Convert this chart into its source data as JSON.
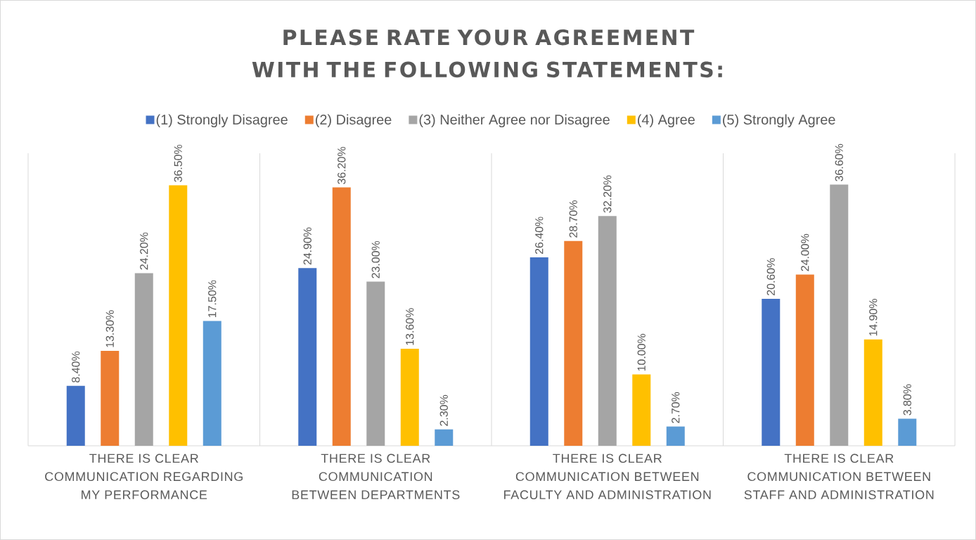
{
  "chart_data": {
    "type": "bar",
    "title": "PLEASE RATE YOUR AGREEMENT WITH THE FOLLOWING STATEMENTS:",
    "categories": [
      "THERE IS CLEAR COMMUNICATION REGARDING MY PERFORMANCE",
      "THERE IS CLEAR COMMUNICATION BETWEEN DEPARTMENTS",
      "THERE IS CLEAR COMMUNICATION BETWEEN FACULTY AND ADMINISTRATION",
      "THERE IS CLEAR COMMUNICATION BETWEEN STAFF AND ADMINISTRATION"
    ],
    "series": [
      {
        "name": "(1) Strongly Disagree",
        "color": "#4472c4",
        "values": [
          8.4,
          24.9,
          26.4,
          20.6
        ],
        "value_labels": [
          "8.40%",
          "24.90%",
          "26.40%",
          "20.60%"
        ]
      },
      {
        "name": "(2) Disagree",
        "color": "#ed7d31",
        "values": [
          13.3,
          36.2,
          28.7,
          24.0
        ],
        "value_labels": [
          "13.30%",
          "36.20%",
          "28.70%",
          "24.00%"
        ]
      },
      {
        "name": "(3) Neither Agree nor Disagree",
        "color": "#a5a5a5",
        "values": [
          24.2,
          23.0,
          32.2,
          36.6
        ],
        "value_labels": [
          "24.20%",
          "23.00%",
          "32.20%",
          "36.60%"
        ]
      },
      {
        "name": "(4) Agree",
        "color": "#ffc000",
        "values": [
          36.5,
          13.6,
          10.0,
          14.9
        ],
        "value_labels": [
          "36.50%",
          "13.60%",
          "10.00%",
          "14.90%"
        ]
      },
      {
        "name": "(5) Strongly Agree",
        "color": "#5b9bd5",
        "values": [
          17.5,
          2.3,
          2.7,
          3.8
        ],
        "value_labels": [
          "17.50%",
          "2.30%",
          "2.70%",
          "3.80%"
        ]
      }
    ],
    "grid": "x",
    "legend": "top",
    "tick_labels": "x"
  }
}
